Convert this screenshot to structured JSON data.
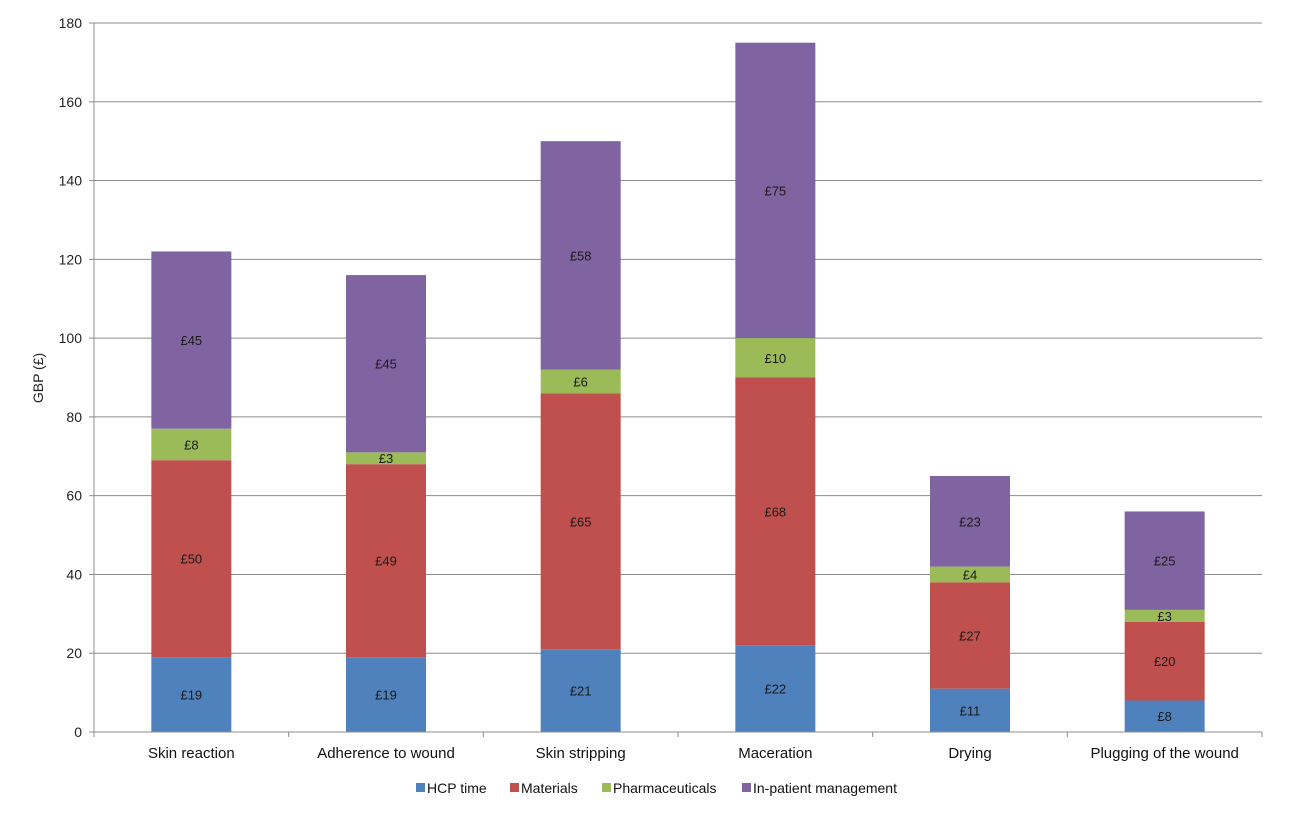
{
  "chart_data": {
    "type": "bar",
    "stacked": true,
    "title": "",
    "xlabel": "",
    "ylabel": "GBP (£)",
    "ylim": [
      0,
      180
    ],
    "yticks": [
      0,
      20,
      40,
      60,
      80,
      100,
      120,
      140,
      160,
      180
    ],
    "grid": true,
    "legend_position": "bottom",
    "categories": [
      "Skin reaction",
      "Adherence to wound",
      "Skin stripping",
      "Maceration",
      "Drying",
      "Plugging of the wound"
    ],
    "series": [
      {
        "name": "HCP time",
        "color": "#4F81BD",
        "values": [
          19,
          19,
          21,
          22,
          11,
          8
        ],
        "labels": [
          "£19",
          "£19",
          "£21",
          "£22",
          "£11",
          "£8"
        ]
      },
      {
        "name": "Materials",
        "color": "#C0504D",
        "values": [
          50,
          49,
          65,
          68,
          27,
          20
        ],
        "labels": [
          "£50",
          "£49",
          "£65",
          "£68",
          "£27",
          "£20"
        ]
      },
      {
        "name": "Pharmaceuticals",
        "color": "#9BBB59",
        "values": [
          8,
          3,
          6,
          10,
          4,
          3
        ],
        "labels": [
          "£8",
          "£3",
          "£6",
          "£10",
          "£4",
          "£3"
        ]
      },
      {
        "name": "In-patient management",
        "color": "#8064A2",
        "values": [
          45,
          45,
          58,
          75,
          23,
          25
        ],
        "labels": [
          "£45",
          "£45",
          "£58",
          "£75",
          "£23",
          "£25"
        ]
      }
    ]
  }
}
